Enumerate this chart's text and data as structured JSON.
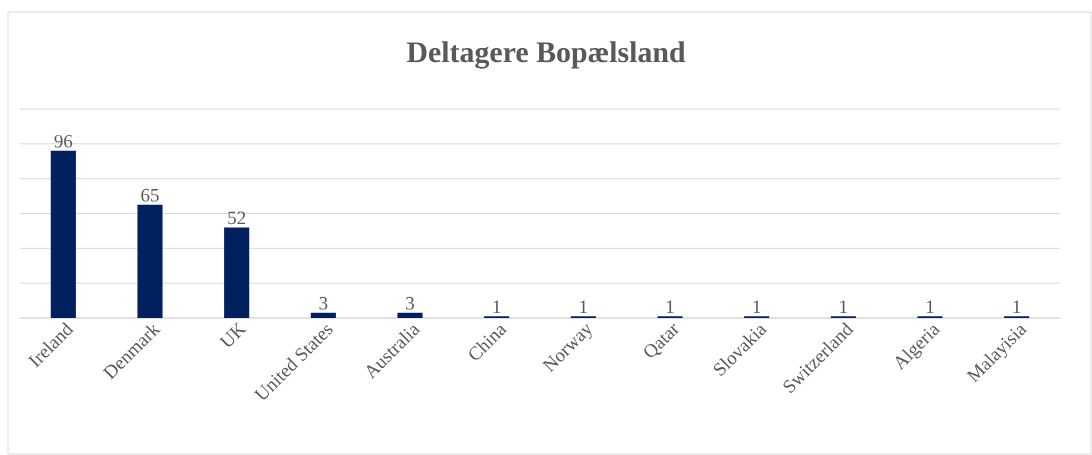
{
  "chart_data": {
    "type": "bar",
    "title": "Deltagere Bopælsland",
    "categories": [
      "Ireland",
      "Denmark",
      "UK",
      "United States",
      "Australia",
      "China",
      "Norway",
      "Qatar",
      "Slovakia",
      "Switzerland",
      "Algeria",
      "Malayisia"
    ],
    "values": [
      96,
      65,
      52,
      3,
      3,
      1,
      1,
      1,
      1,
      1,
      1,
      1
    ],
    "color": "#002060",
    "ylim": [
      0,
      120
    ],
    "yticks": [
      {
        "value": 0,
        "label": null
      },
      {
        "value": 20,
        "label": null
      },
      {
        "value": 40,
        "label": null
      },
      {
        "value": 60,
        "label": null
      },
      {
        "value": 80,
        "label": null
      },
      {
        "value": 100,
        "label": null
      },
      {
        "value": 120,
        "label": null
      }
    ],
    "tick_labels": "x",
    "grid": "y",
    "data_labels": true
  }
}
